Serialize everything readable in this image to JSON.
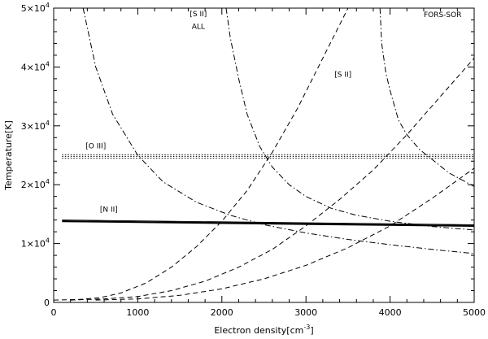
{
  "chart_data": {
    "type": "line",
    "title": "",
    "xlabel": "Electron density[cm",
    "xlabel_sup": "-3",
    "xlabel_end": "]",
    "ylabel": "Temperature[K]",
    "xlim": [
      0,
      5000
    ],
    "ylim": [
      0,
      50000
    ],
    "grid": false,
    "x_ticks": [
      0,
      1000,
      2000,
      3000,
      4000,
      5000
    ],
    "x_tick_labels": [
      "0",
      "1000",
      "2000",
      "3000",
      "4000",
      "5000"
    ],
    "y_ticks": [
      0,
      10000,
      20000,
      30000,
      40000,
      50000
    ],
    "y_tick_labels": [
      {
        "base": "0",
        "sup": ""
      },
      {
        "base": "1×10",
        "sup": "4"
      },
      {
        "base": "2×10",
        "sup": "4"
      },
      {
        "base": "3×10",
        "sup": "4"
      },
      {
        "base": "4×10",
        "sup": "4"
      },
      {
        "base": "5×10",
        "sup": "4"
      }
    ],
    "annotations": [
      {
        "text": "FORS-SOR",
        "x": 4850,
        "y": 48500
      },
      {
        "text": "[S II]",
        "x": 1720,
        "y": 48600
      },
      {
        "text": "ALL",
        "x": 1720,
        "y": 46500
      },
      {
        "text": "[S II]",
        "x": 3440,
        "y": 38300
      },
      {
        "text": "[O III]",
        "x": 380,
        "y": 26200
      },
      {
        "text": "[N II]",
        "x": 550,
        "y": 15400
      }
    ],
    "series": [
      {
        "style": "solid",
        "width": 2.2,
        "x": [
          100,
          5000
        ],
        "y": [
          13800,
          13000
        ]
      },
      {
        "style": "solid",
        "width": 0.9,
        "x": [
          100,
          5000
        ],
        "y": [
          14000,
          13200
        ]
      },
      {
        "style": "dotted",
        "width": 1,
        "x": [
          100,
          5000
        ],
        "y": [
          24500,
          24500
        ]
      },
      {
        "style": "dotted",
        "width": 1,
        "x": [
          100,
          5000
        ],
        "y": [
          24800,
          24800
        ]
      },
      {
        "style": "dotted",
        "width": 1,
        "x": [
          100,
          5000
        ],
        "y": [
          25100,
          25100
        ]
      },
      {
        "style": "dashdot",
        "width": 1,
        "x": [
          350,
          500,
          700,
          1000,
          1300,
          1700,
          2100,
          2500,
          3000,
          3500,
          4000,
          4500,
          5000
        ],
        "y": [
          50000,
          40000,
          32000,
          25000,
          20500,
          17000,
          14800,
          13200,
          11800,
          10700,
          9800,
          9000,
          8300
        ]
      },
      {
        "style": "dashdot",
        "width": 1,
        "x": [
          2050,
          2100,
          2200,
          2300,
          2450,
          2600,
          2800,
          3000,
          3300,
          3600,
          4000,
          4500,
          5000
        ],
        "y": [
          50000,
          45000,
          38000,
          32000,
          26500,
          23000,
          20000,
          18000,
          16000,
          14800,
          13800,
          12900,
          12300
        ]
      },
      {
        "style": "dashdot",
        "width": 1,
        "x": [
          3880,
          3900,
          3950,
          4000,
          4100,
          4200,
          4350,
          4500,
          4700,
          5000
        ],
        "y": [
          50000,
          44000,
          39000,
          36000,
          31000,
          28500,
          26000,
          24300,
          22000,
          19700
        ]
      },
      {
        "style": "dashed",
        "width": 1,
        "x": [
          0,
          300,
          550,
          800,
          1100,
          1400,
          1700,
          2000,
          2300,
          2600,
          2900,
          3200,
          3500
        ],
        "y": [
          400,
          500,
          800,
          1600,
          3300,
          6000,
          9500,
          13800,
          19000,
          25500,
          33000,
          41500,
          50000
        ]
      },
      {
        "style": "dashed",
        "width": 1,
        "x": [
          200,
          600,
          1000,
          1400,
          1800,
          2200,
          2600,
          3000,
          3400,
          3800,
          4200,
          4600,
          5000
        ],
        "y": [
          400,
          600,
          1000,
          2000,
          3600,
          6000,
          9000,
          13000,
          17500,
          22500,
          28500,
          35000,
          41500
        ]
      },
      {
        "style": "dashed",
        "width": 1,
        "x": [
          500,
          1000,
          1500,
          2000,
          2500,
          3000,
          3500,
          4000,
          4500,
          5000
        ],
        "y": [
          400,
          600,
          1200,
          2300,
          4000,
          6300,
          9300,
          13000,
          17700,
          22800
        ]
      }
    ]
  }
}
